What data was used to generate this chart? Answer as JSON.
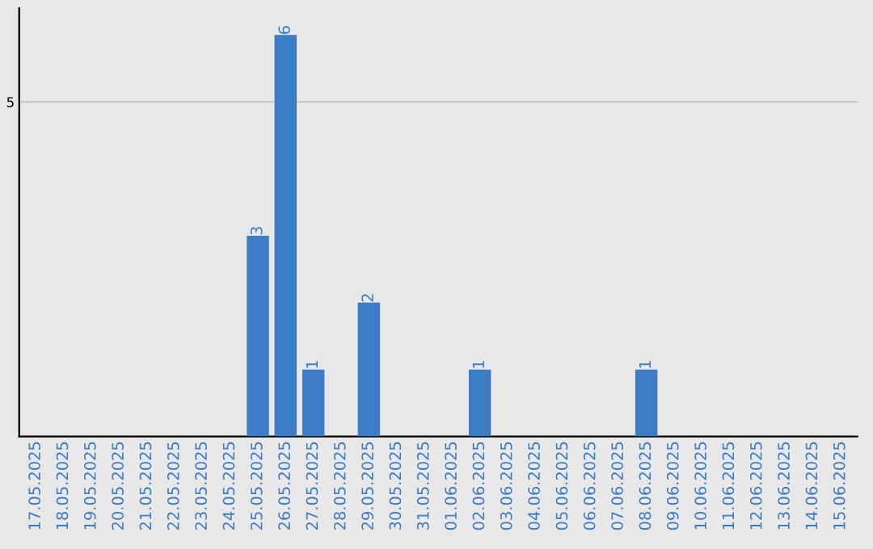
{
  "chart_data": {
    "type": "bar",
    "categories": [
      "17.05.2025",
      "18.05.2025",
      "19.05.2025",
      "20.05.2025",
      "21.05.2025",
      "22.05.2025",
      "23.05.2025",
      "24.05.2025",
      "25.05.2025",
      "26.05.2025",
      "27.05.2025",
      "28.05.2025",
      "29.05.2025",
      "30.05.2025",
      "31.05.2025",
      "01.06.2025",
      "02.06.2025",
      "03.06.2025",
      "04.06.2025",
      "05.06.2025",
      "06.06.2025",
      "07.06.2025",
      "08.06.2025",
      "09.06.2025",
      "10.06.2025",
      "11.06.2025",
      "12.06.2025",
      "13.06.2025",
      "14.06.2025",
      "15.06.2025"
    ],
    "values": [
      0,
      0,
      0,
      0,
      0,
      0,
      0,
      0,
      3,
      6,
      1,
      0,
      2,
      0,
      0,
      0,
      1,
      0,
      0,
      0,
      0,
      0,
      1,
      0,
      0,
      0,
      0,
      0,
      0,
      0
    ],
    "value_labels": [
      null,
      null,
      null,
      null,
      null,
      null,
      null,
      null,
      "3",
      "6",
      "1",
      null,
      "2",
      null,
      null,
      null,
      "1",
      null,
      null,
      null,
      null,
      null,
      "1",
      null,
      null,
      null,
      null,
      null,
      null,
      null
    ],
    "color": "#3b7cc4",
    "ylim": [
      0,
      6.4
    ],
    "yticks": [
      5
    ],
    "grid": "y"
  }
}
